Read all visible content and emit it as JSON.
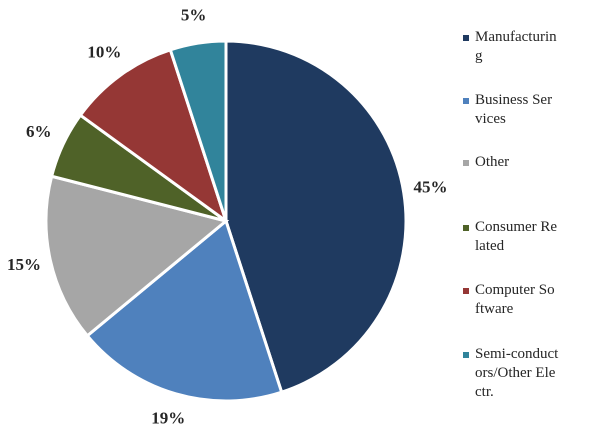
{
  "chart_data": {
    "type": "pie",
    "categories": [
      "Manufacturing",
      "Business Services",
      "Other",
      "Consumer Related",
      "Computer Software",
      "Semi-conductors/Other Electr."
    ],
    "values": [
      45,
      19,
      15,
      6,
      10,
      5
    ],
    "value_labels": [
      "45%",
      "19%",
      "15%",
      "6%",
      "10%",
      "5%"
    ],
    "colors": [
      "#1f3a60",
      "#4f81bd",
      "#a6a6a6",
      "#4f6228",
      "#953735",
      "#31849b"
    ],
    "legend": "right"
  }
}
